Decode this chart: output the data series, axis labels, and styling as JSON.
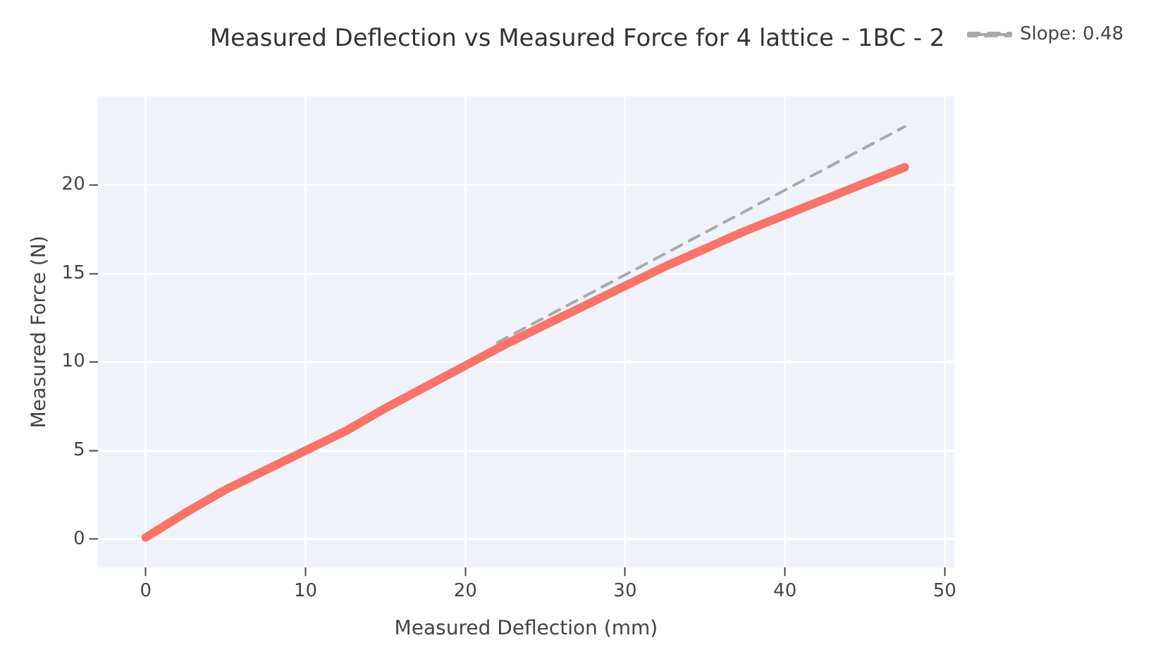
{
  "chart_data": {
    "type": "line",
    "title": "Measured Deflection vs Measured Force for 4 lattice - 1BC - 2",
    "xlabel": "Measured Deflection (mm)",
    "ylabel": "Measured Force (N)",
    "series": [
      {
        "color": "#fa7268",
        "x": [
          0,
          2.5,
          5,
          7.5,
          10,
          12.5,
          15,
          17.5,
          20,
          22.5,
          25,
          27.5,
          30,
          32.5,
          35,
          37.5,
          40,
          42.5,
          45,
          47.5
        ],
        "values": [
          0.1,
          1.5,
          2.8,
          3.9,
          5,
          6.1,
          7.4,
          8.6,
          9.8,
          11,
          12.1,
          13.2,
          14.3,
          15.4,
          16.4,
          17.4,
          18.3,
          19.2,
          20.1,
          21
        ]
      },
      {
        "name": "Slope: 0.48",
        "type": "line",
        "line_style": "dashed",
        "color": "#a9a9a9",
        "x": [
          22,
          47.5
        ],
        "values": [
          11.1,
          23.3
        ]
      }
    ],
    "xlim": [
      -3,
      50.6
    ],
    "ylim": [
      -1.6,
      25
    ],
    "xticks": [
      0,
      10,
      20,
      30,
      40,
      50
    ],
    "yticks": [
      0,
      5,
      10,
      15,
      20
    ],
    "grid": true,
    "legend": "top right",
    "marker": "none"
  }
}
